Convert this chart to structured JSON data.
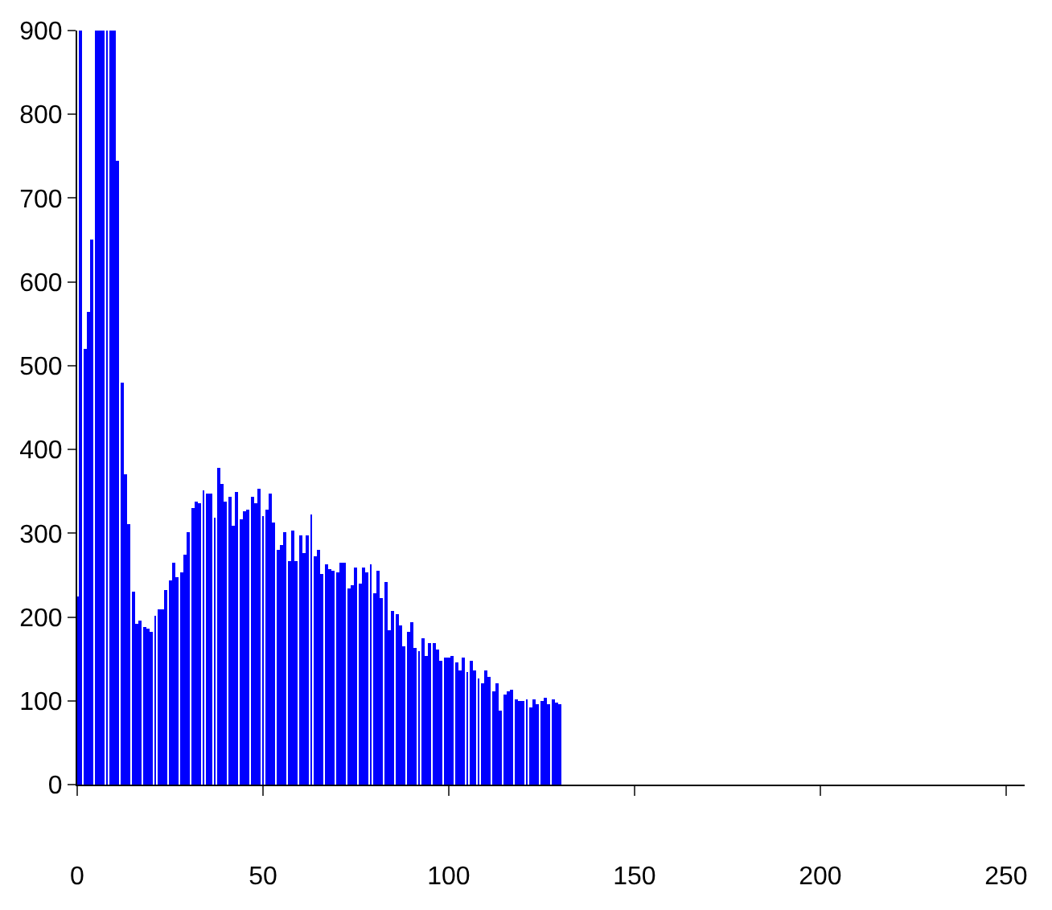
{
  "chart_data": {
    "type": "bar",
    "x": [
      0,
      1,
      2,
      3,
      4,
      5,
      6,
      7,
      8,
      9,
      10,
      11,
      12,
      13,
      14,
      15,
      16,
      17,
      18,
      19,
      20,
      21,
      22,
      23,
      24,
      25,
      26,
      27,
      28,
      29,
      30,
      31,
      32,
      33,
      34,
      35,
      36,
      37,
      38,
      39,
      40,
      41,
      42,
      43,
      44,
      45,
      46,
      47,
      48,
      49,
      50,
      51,
      52,
      53,
      54,
      55,
      56,
      57,
      58,
      59,
      60,
      61,
      62,
      63,
      64,
      65,
      66,
      67,
      68,
      69,
      70,
      71,
      72,
      73,
      74,
      75,
      76,
      77,
      78,
      79,
      80,
      81,
      82,
      83,
      84,
      85,
      86,
      87,
      88,
      89,
      90,
      91,
      92,
      93,
      94,
      95,
      96,
      97,
      98,
      99,
      100,
      101,
      102,
      103,
      104,
      105,
      106,
      107,
      108,
      109,
      110,
      111,
      112,
      113,
      114,
      115,
      116,
      117,
      118,
      119,
      120,
      121,
      122,
      123,
      124,
      125,
      126,
      127,
      128,
      129,
      130
    ],
    "values": [
      225,
      900,
      520,
      565,
      650,
      900,
      900,
      900,
      900,
      900,
      900,
      745,
      480,
      370,
      310,
      230,
      192,
      195,
      188,
      187,
      182,
      202,
      210,
      210,
      232,
      244,
      264,
      247,
      254,
      275,
      301,
      330,
      338,
      335,
      352,
      347,
      347,
      318,
      378,
      358,
      338,
      344,
      309,
      349,
      316,
      327,
      328,
      344,
      335,
      354,
      321,
      328,
      347,
      312,
      281,
      286,
      301,
      266,
      304,
      267,
      298,
      276,
      298,
      323,
      273,
      281,
      251,
      262,
      258,
      256,
      254,
      265,
      264,
      235,
      238,
      259,
      240,
      259,
      253,
      262,
      228,
      256,
      222,
      242,
      185,
      208,
      203,
      190,
      166,
      182,
      194,
      163,
      160,
      174,
      154,
      168,
      168,
      162,
      148,
      151,
      151,
      154,
      145,
      136,
      151,
      134,
      148,
      137,
      126,
      120,
      136,
      128,
      111,
      121,
      88,
      107,
      111,
      114,
      102,
      99,
      99,
      102,
      92,
      102,
      96,
      100,
      104,
      96,
      101,
      98,
      95
    ],
    "color": "#0000ff",
    "xlim": [
      0,
      255
    ],
    "ylim": [
      0,
      900
    ],
    "xticks": [
      0,
      50,
      100,
      150,
      200,
      250
    ],
    "yticks": [
      0,
      100,
      200,
      300,
      400,
      500,
      600,
      700,
      800,
      900
    ]
  }
}
